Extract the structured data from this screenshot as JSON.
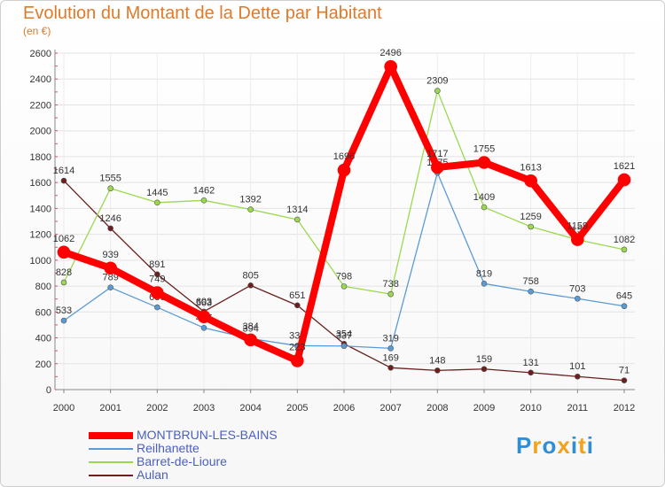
{
  "chart_data": {
    "type": "line",
    "title": "Evolution du Montant de la Dette par Habitant",
    "subtitle": "(en €)",
    "x": [
      "2000",
      "2001",
      "2002",
      "2003",
      "2004",
      "2005",
      "2006",
      "2007",
      "2008",
      "2009",
      "2010",
      "2011",
      "2012"
    ],
    "y_ticks": [
      "0",
      "200",
      "400",
      "600",
      "800",
      "1000",
      "1200",
      "1400",
      "1600",
      "1800",
      "2000",
      "2200",
      "2400",
      "2600"
    ],
    "ylim": [
      0,
      2600
    ],
    "grid": true,
    "legend_position": "bottom-left",
    "series": [
      {
        "name": "Aulan",
        "color": "#6b1f1f",
        "width": 1.3,
        "values": [
          1614,
          1246,
          891,
          603,
          805,
          651,
          354,
          169,
          148,
          159,
          131,
          101,
          71
        ],
        "labels": [
          "1614",
          "1246",
          "891",
          "603",
          "805",
          "651",
          "354",
          "169",
          "148",
          "159",
          "131",
          "101",
          "71"
        ]
      },
      {
        "name": "Barret-de-Lioure",
        "color": "#9ad94f",
        "width": 1.3,
        "values": [
          828,
          1555,
          1445,
          1462,
          1392,
          1314,
          798,
          738,
          2309,
          1409,
          1259,
          1158,
          1082
        ],
        "labels": [
          "828",
          "1555",
          "1445",
          "1462",
          "1392",
          "1314",
          "798",
          "738",
          "2309",
          "1409",
          "1259",
          "1158",
          "1082"
        ]
      },
      {
        "name": "Reilhanette",
        "color": "#5b9bd5",
        "width": 1.3,
        "values": [
          533,
          789,
          636,
          477,
          394,
          339,
          337,
          319,
          1675,
          819,
          758,
          703,
          645
        ],
        "labels": [
          "533",
          "789",
          "636",
          "477",
          "394",
          "339",
          "337",
          "319",
          "1675",
          "819",
          "758",
          "703",
          "645"
        ]
      },
      {
        "name": "MONTBRUN-LES-BAINS",
        "color": "#ff0000",
        "width": 8,
        "values": [
          1062,
          939,
          749,
          563,
          384,
          223,
          1696,
          2496,
          1717,
          1755,
          1613,
          1159,
          1621
        ],
        "labels": [
          "1062",
          "939",
          "749",
          "563",
          "384",
          "223",
          "1696",
          "2496",
          "1717",
          "1755",
          "1613",
          "1159",
          "1621"
        ]
      }
    ],
    "legend_order": [
      "MONTBRUN-LES-BAINS",
      "Reilhanette",
      "Barret-de-Lioure",
      "Aulan"
    ]
  },
  "logo": {
    "text": "Proxiti",
    "letter_colors": [
      "#2e8fd6",
      "#f2a31b",
      "#2e8fd6",
      "#f2a31b",
      "#2e8fd6",
      "#f2a31b",
      "#2e8fd6"
    ]
  }
}
